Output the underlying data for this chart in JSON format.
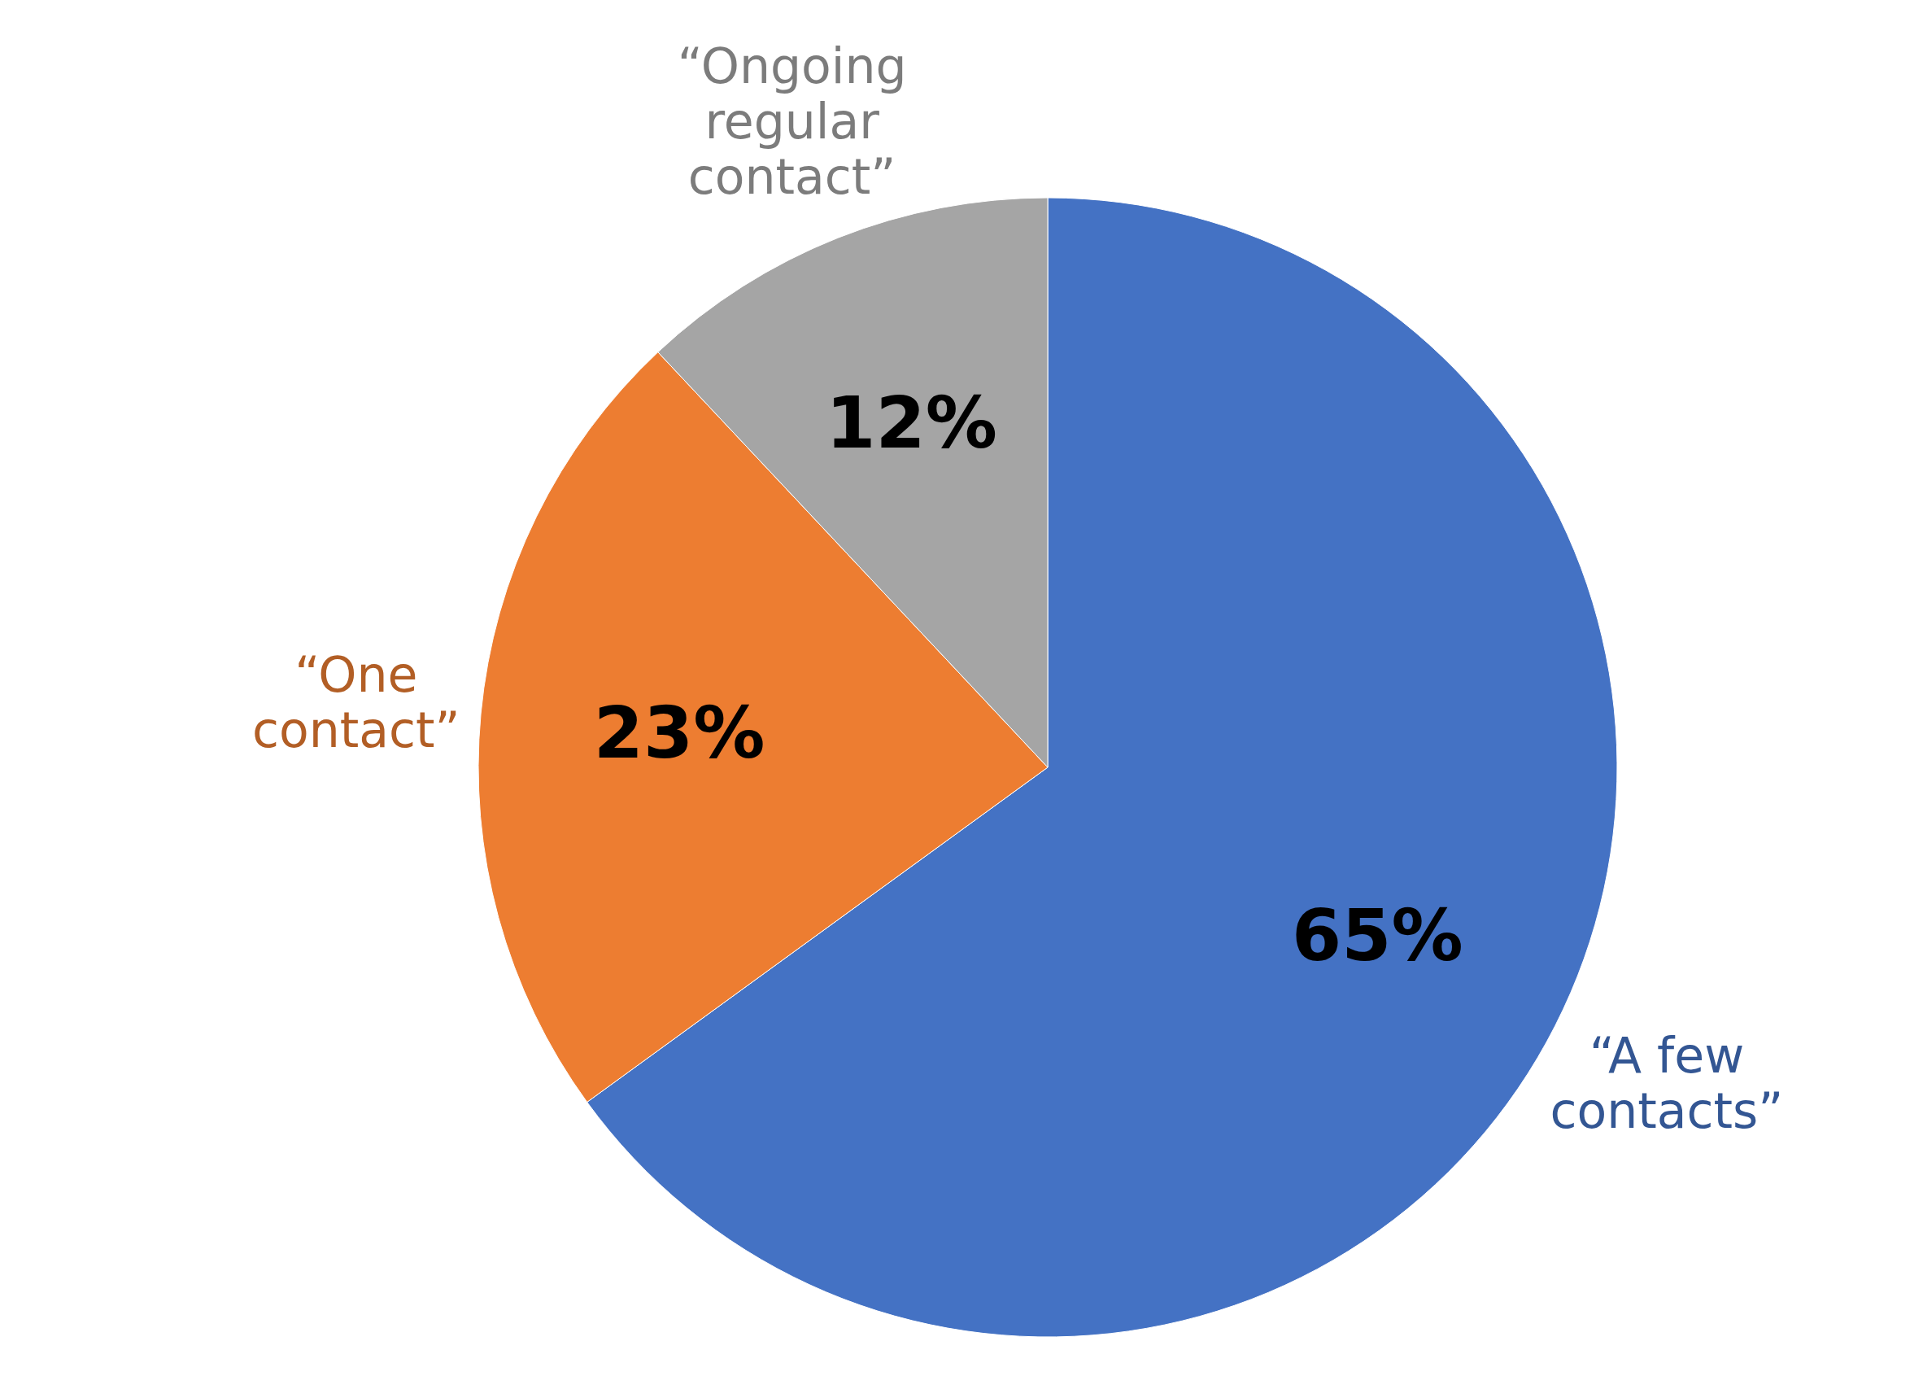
{
  "chart_data": {
    "type": "pie",
    "categories": [
      "“A few contacts”",
      "“One contact”",
      "“Ongoing regular contact”"
    ],
    "values": [
      65,
      23,
      12
    ],
    "colors": [
      "#4472c4",
      "#ed7d31",
      "#a5a5a5"
    ],
    "value_labels": [
      "65%",
      "23%",
      "12%"
    ]
  }
}
